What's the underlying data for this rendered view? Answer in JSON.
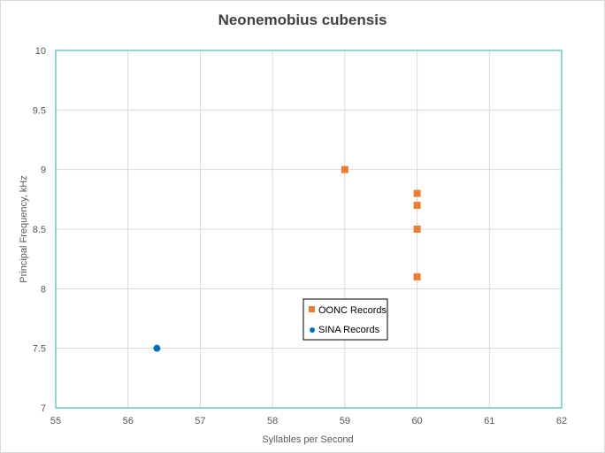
{
  "chart_data": {
    "type": "scatter",
    "title": "Neonemobius cubensis",
    "xlabel": "Syllables per Second",
    "ylabel": "Principal Frequency, kHz",
    "xlim": [
      55,
      62
    ],
    "ylim": [
      7,
      10
    ],
    "xticks": [
      "55",
      "56",
      "57",
      "58",
      "59",
      "60",
      "61",
      "62"
    ],
    "yticks": [
      "7",
      "7.5",
      "8",
      "8.5",
      "9",
      "9.5",
      "10"
    ],
    "grid": true,
    "legend_position": "center",
    "series": [
      {
        "name": "OONC Records",
        "marker": "square",
        "color": "#ED7D31",
        "points": [
          {
            "x": 59,
            "y": 9.0
          },
          {
            "x": 60,
            "y": 8.8
          },
          {
            "x": 60,
            "y": 8.7
          },
          {
            "x": 60,
            "y": 8.5
          },
          {
            "x": 60,
            "y": 8.1
          }
        ]
      },
      {
        "name": "SINA Records",
        "marker": "circle",
        "color": "#0070C0",
        "points": [
          {
            "x": 56.4,
            "y": 7.5
          }
        ]
      }
    ],
    "plot_border_color": "#20B2AA",
    "grid_color": "#D9D9D9"
  }
}
